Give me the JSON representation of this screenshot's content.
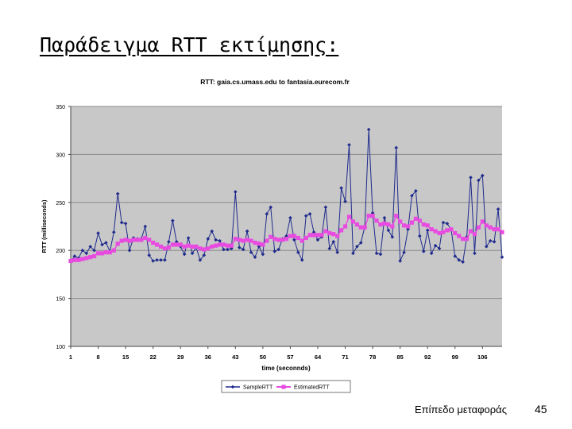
{
  "slide": {
    "title": "Παράδειγμα RTT εκτίμησης:",
    "footer": "Επίπεδο μεταφοράς",
    "page_number": "45"
  },
  "colors": {
    "plot_bg": "#c8c8c8",
    "sample": "#1f2a8c",
    "estimated": "#e84be0",
    "grid": "#8a8a8a"
  },
  "chart_data": {
    "type": "line",
    "title": "RTT: gaia.cs.umass.edu to fantasia.eurecom.fr",
    "xlabel": "time (seconnds)",
    "ylabel": "RTT (milliseconds)",
    "ylim": [
      100,
      350
    ],
    "yticks": [
      100,
      150,
      200,
      250,
      300,
      350
    ],
    "xlim": [
      1,
      111
    ],
    "xticks": [
      1,
      8,
      15,
      22,
      29,
      36,
      43,
      50,
      57,
      64,
      71,
      78,
      85,
      92,
      99,
      106
    ],
    "grid": "horizontal",
    "legend": "bottom",
    "series": [
      {
        "name": "SampleRTT",
        "marker": "diamond",
        "values": [
          189,
          194,
          192,
          200,
          197,
          204,
          200,
          218,
          206,
          208,
          199,
          219,
          259,
          229,
          228,
          200,
          213,
          212,
          212,
          225,
          195,
          189,
          190,
          190,
          190,
          209,
          231,
          209,
          204,
          196,
          213,
          197,
          203,
          190,
          195,
          212,
          220,
          211,
          210,
          201,
          201,
          202,
          261,
          203,
          201,
          220,
          198,
          193,
          204,
          196,
          238,
          245,
          199,
          201,
          212,
          215,
          234,
          211,
          198,
          190,
          236,
          238,
          219,
          211,
          214,
          245,
          202,
          209,
          198,
          265,
          251,
          310,
          197,
          204,
          208,
          225,
          326,
          239,
          197,
          196,
          234,
          221,
          214,
          307,
          189,
          198,
          222,
          257,
          262,
          215,
          199,
          221,
          197,
          205,
          202,
          229,
          228,
          222,
          194,
          190,
          188,
          214,
          276,
          197,
          273,
          278,
          204,
          210,
          209,
          243,
          193
        ]
      },
      {
        "name": "EstimatedRTT",
        "marker": "square",
        "values": [
          189,
          190,
          190,
          191,
          192,
          193,
          194,
          197,
          197,
          198,
          198,
          200,
          207,
          210,
          211,
          210,
          211,
          211,
          211,
          213,
          211,
          208,
          206,
          204,
          202,
          203,
          206,
          206,
          206,
          204,
          205,
          204,
          204,
          202,
          201,
          202,
          204,
          205,
          206,
          206,
          205,
          205,
          212,
          211,
          210,
          211,
          210,
          208,
          207,
          206,
          210,
          214,
          212,
          211,
          211,
          212,
          215,
          215,
          213,
          210,
          213,
          216,
          216,
          216,
          216,
          220,
          218,
          217,
          215,
          221,
          225,
          235,
          230,
          227,
          224,
          224,
          236,
          236,
          231,
          227,
          228,
          227,
          225,
          236,
          230,
          226,
          225,
          229,
          233,
          231,
          227,
          226,
          222,
          220,
          218,
          219,
          221,
          222,
          218,
          215,
          212,
          212,
          220,
          217,
          224,
          230,
          226,
          224,
          222,
          222,
          219
        ]
      }
    ]
  }
}
